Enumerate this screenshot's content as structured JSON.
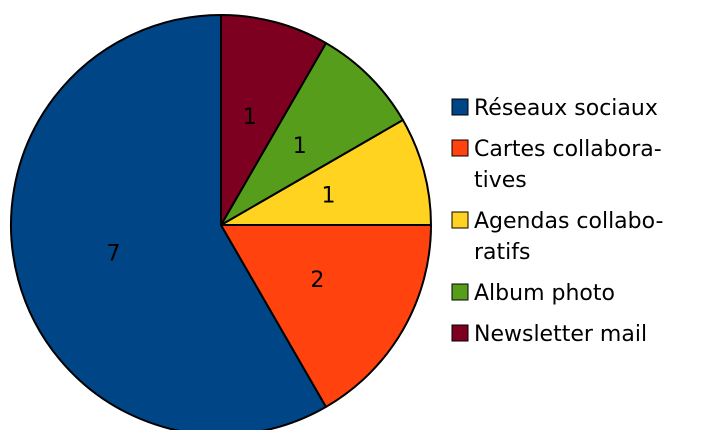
{
  "chart_data": {
    "type": "pie",
    "categories": [
      "Réseaux sociaux",
      "Cartes collaboratives",
      "Agendas collaboratifs",
      "Album photo",
      "Newsletter mail"
    ],
    "values": [
      7,
      2,
      1,
      1,
      1
    ],
    "colors": [
      "#004586",
      "#ff420e",
      "#ffd320",
      "#579d1c",
      "#7e0021"
    ],
    "legend": {
      "position": "right",
      "entries": [
        {
          "lines": [
            "Réseaux sociaux"
          ]
        },
        {
          "lines": [
            "Cartes collabora-",
            "tives"
          ]
        },
        {
          "lines": [
            "Agendas collabo-",
            "ratifs"
          ]
        },
        {
          "lines": [
            "Album photo"
          ]
        },
        {
          "lines": [
            "Newsletter mail"
          ]
        }
      ]
    }
  }
}
